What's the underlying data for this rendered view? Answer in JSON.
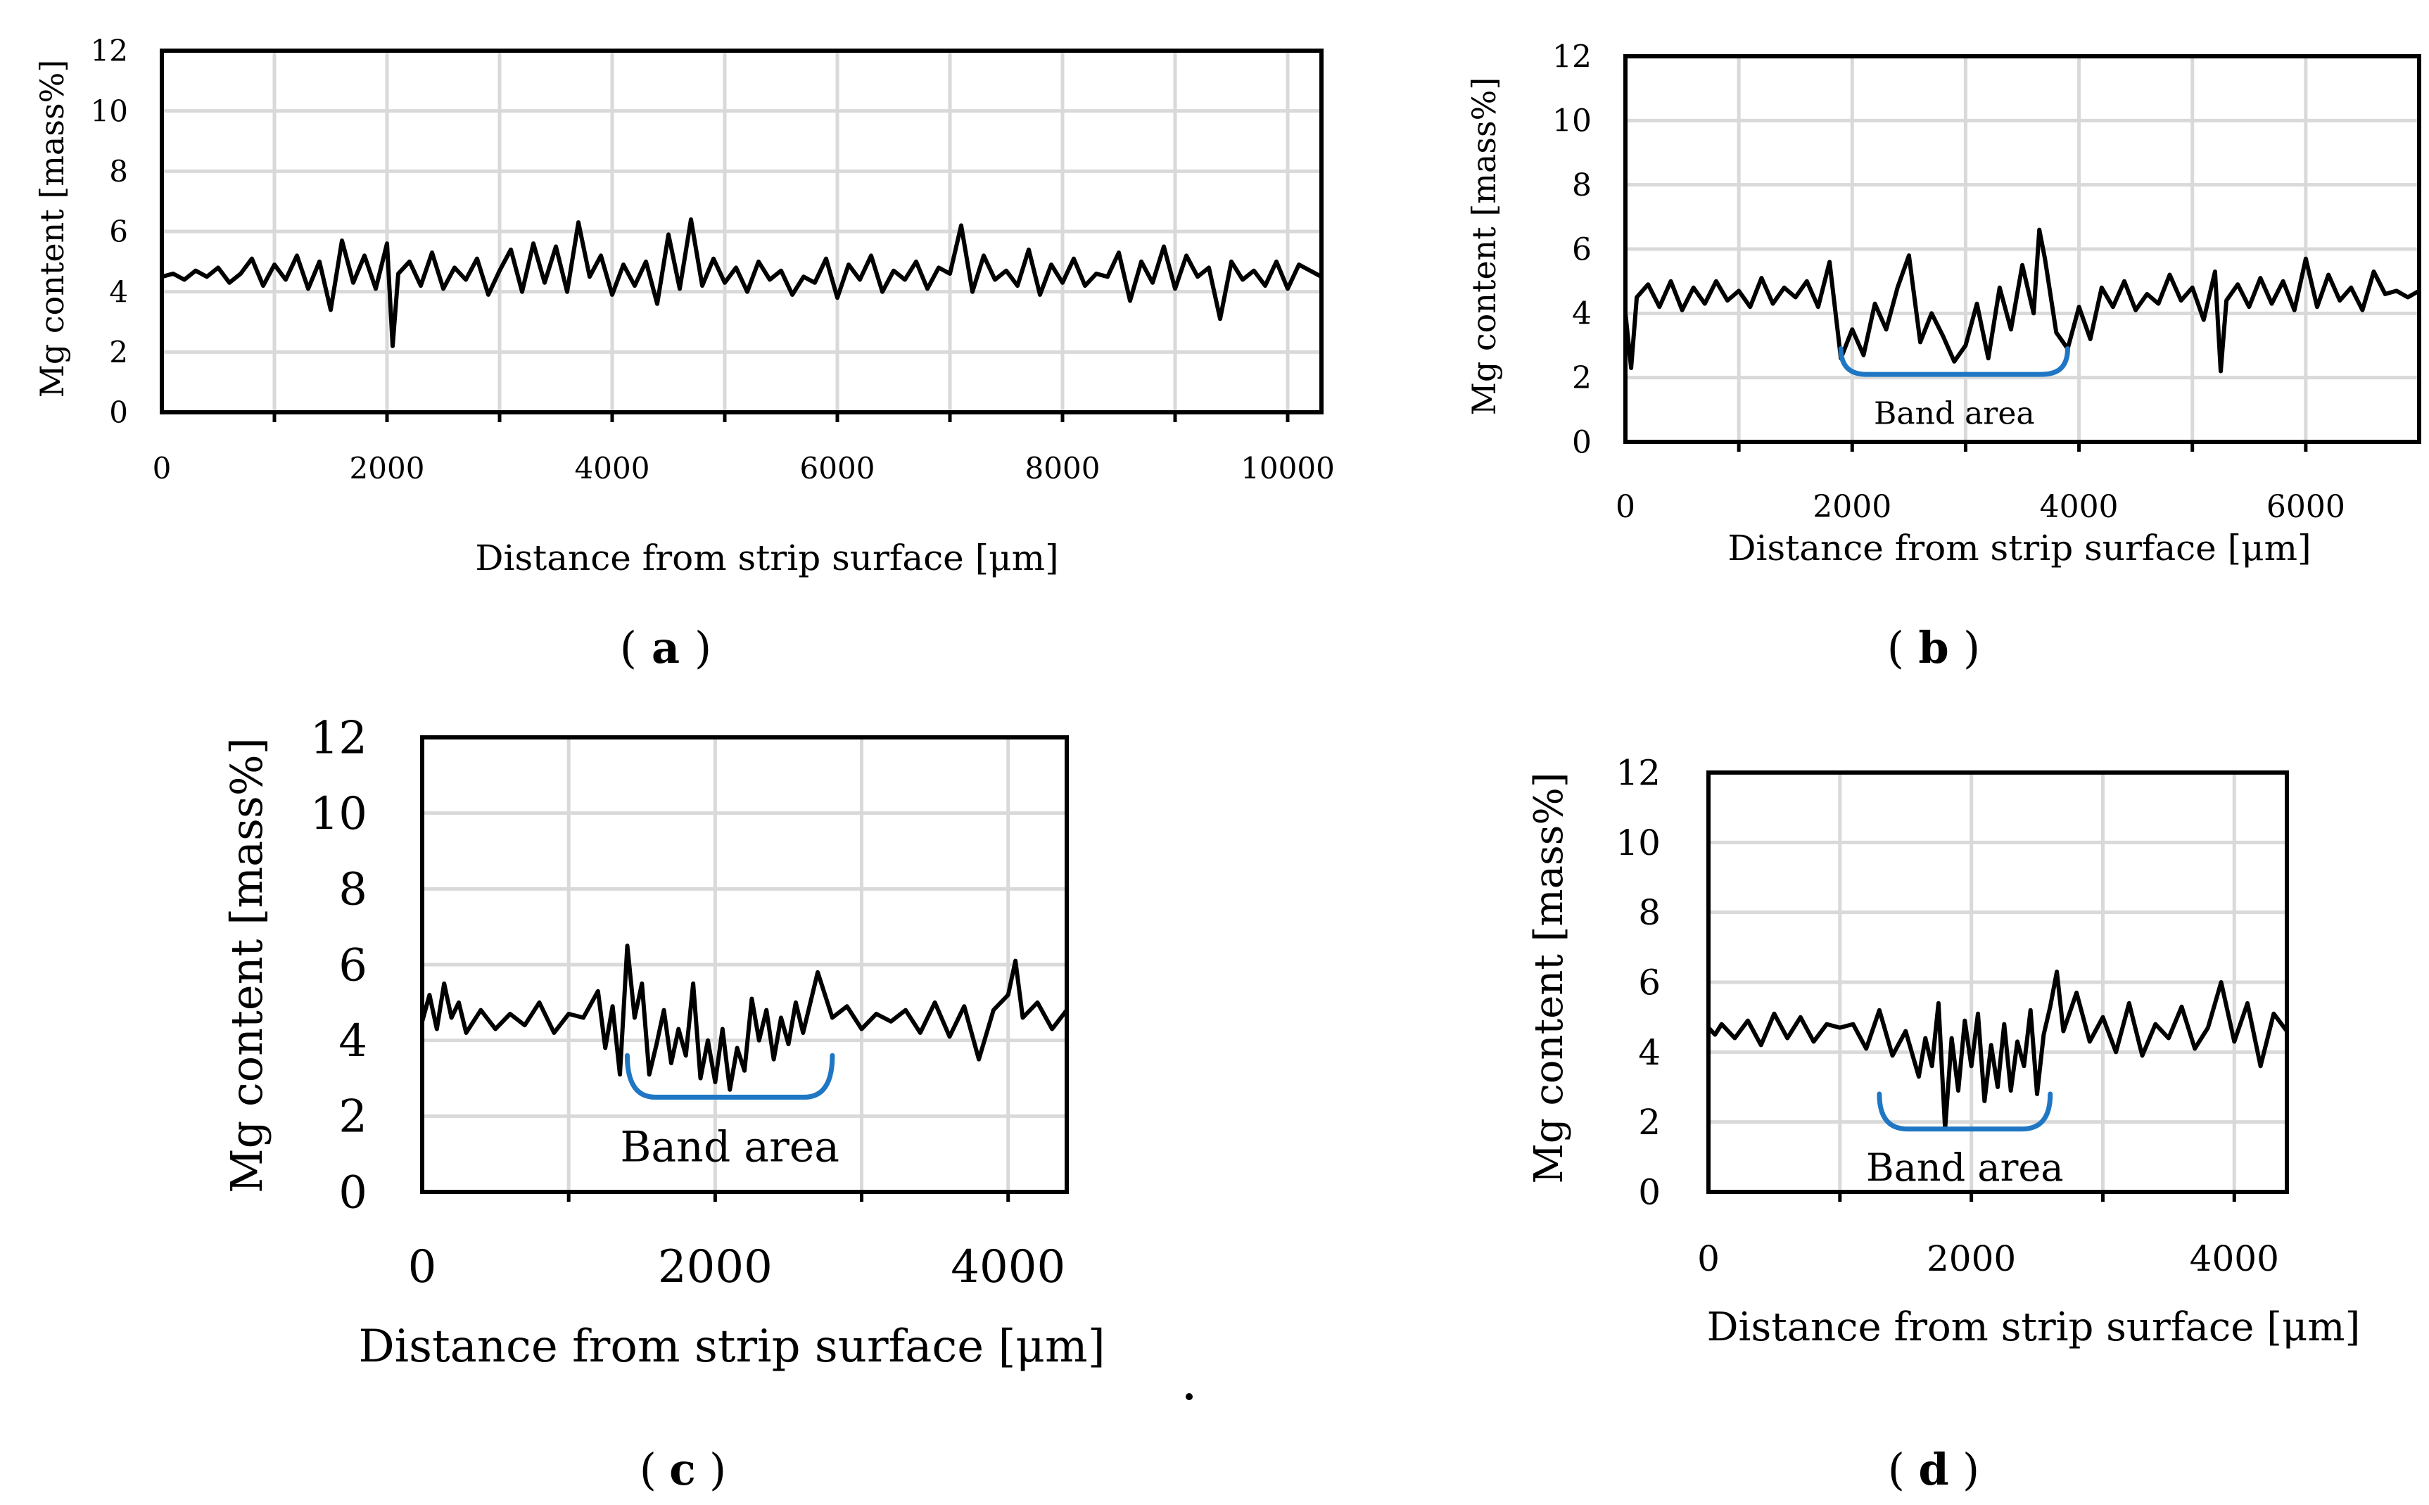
{
  "chart_data": [
    {
      "id": "a",
      "type": "line",
      "panel_label": "a",
      "xlabel": "Distance from strip surface  [μm]",
      "ylabel": "Mg content [mass%]",
      "xlim": [
        0,
        10300
      ],
      "ylim": [
        0,
        12
      ],
      "xticks": [
        0,
        2000,
        4000,
        6000,
        8000,
        10000
      ],
      "yticks": [
        0,
        2,
        4,
        6,
        8,
        10,
        12
      ],
      "xgrid_step": 1000,
      "series": [
        {
          "name": "Mg content",
          "x": [
            0,
            100,
            200,
            300,
            400,
            500,
            600,
            700,
            800,
            900,
            1000,
            1100,
            1200,
            1300,
            1400,
            1500,
            1600,
            1700,
            1800,
            1900,
            2000,
            2050,
            2100,
            2200,
            2300,
            2400,
            2500,
            2600,
            2700,
            2800,
            2900,
            3000,
            3100,
            3200,
            3300,
            3400,
            3500,
            3600,
            3700,
            3800,
            3900,
            4000,
            4100,
            4200,
            4300,
            4400,
            4500,
            4600,
            4700,
            4800,
            4900,
            5000,
            5100,
            5200,
            5300,
            5400,
            5500,
            5600,
            5700,
            5800,
            5900,
            6000,
            6100,
            6200,
            6300,
            6400,
            6500,
            6600,
            6700,
            6800,
            6900,
            7000,
            7100,
            7200,
            7300,
            7400,
            7500,
            7600,
            7700,
            7800,
            7900,
            8000,
            8100,
            8200,
            8300,
            8400,
            8500,
            8600,
            8700,
            8800,
            8900,
            9000,
            9100,
            9200,
            9300,
            9400,
            9500,
            9600,
            9700,
            9800,
            9900,
            10000,
            10100,
            10200,
            10300
          ],
          "y": [
            4.5,
            4.6,
            4.4,
            4.7,
            4.5,
            4.8,
            4.3,
            4.6,
            5.1,
            4.2,
            4.9,
            4.4,
            5.2,
            4.1,
            5.0,
            3.4,
            5.7,
            4.3,
            5.2,
            4.1,
            5.6,
            2.2,
            4.6,
            5.0,
            4.2,
            5.3,
            4.1,
            4.8,
            4.4,
            5.1,
            3.9,
            4.7,
            5.4,
            4.0,
            5.6,
            4.3,
            5.5,
            4.0,
            6.3,
            4.5,
            5.2,
            3.9,
            4.9,
            4.2,
            5.0,
            3.6,
            5.9,
            4.1,
            6.4,
            4.2,
            5.1,
            4.3,
            4.8,
            4.0,
            5.0,
            4.4,
            4.7,
            3.9,
            4.5,
            4.3,
            5.1,
            3.8,
            4.9,
            4.4,
            5.2,
            4.0,
            4.7,
            4.4,
            5.0,
            4.1,
            4.8,
            4.6,
            6.2,
            4.0,
            5.2,
            4.4,
            4.7,
            4.2,
            5.4,
            3.9,
            4.9,
            4.3,
            5.1,
            4.2,
            4.6,
            4.5,
            5.3,
            3.7,
            5.0,
            4.3,
            5.5,
            4.1,
            5.2,
            4.5,
            4.8,
            3.1,
            5.0,
            4.4,
            4.7,
            4.2,
            5.0,
            4.1,
            4.9,
            4.7,
            4.5
          ]
        }
      ]
    },
    {
      "id": "b",
      "type": "line",
      "panel_label": "b",
      "xlabel": "Distance from strip surface [μm]",
      "ylabel": "Mg content [mass%]",
      "xlim": [
        0,
        7000
      ],
      "ylim": [
        0,
        12
      ],
      "xticks": [
        0,
        2000,
        4000,
        6000
      ],
      "yticks": [
        0,
        2,
        4,
        6,
        8,
        10,
        12
      ],
      "xgrid_step": 1000,
      "annotation": {
        "text": "Band area",
        "x_range": [
          1900,
          3900
        ],
        "y": 2.9,
        "y_bottom": 2.1,
        "label_y": 0.9
      },
      "series": [
        {
          "name": "Mg content",
          "x": [
            0,
            50,
            100,
            200,
            300,
            400,
            500,
            600,
            700,
            800,
            900,
            1000,
            1100,
            1200,
            1300,
            1400,
            1500,
            1600,
            1700,
            1800,
            1900,
            2000,
            2100,
            2200,
            2300,
            2400,
            2500,
            2600,
            2700,
            2800,
            2900,
            3000,
            3100,
            3200,
            3300,
            3400,
            3500,
            3600,
            3650,
            3700,
            3800,
            3900,
            4000,
            4100,
            4200,
            4300,
            4400,
            4500,
            4600,
            4700,
            4800,
            4900,
            5000,
            5100,
            5200,
            5250,
            5300,
            5400,
            5500,
            5600,
            5700,
            5800,
            5900,
            6000,
            6100,
            6200,
            6300,
            6400,
            6500,
            6600,
            6700,
            6800,
            6900,
            7000
          ],
          "y": [
            4.0,
            2.3,
            4.5,
            4.9,
            4.2,
            5.0,
            4.1,
            4.8,
            4.3,
            5.0,
            4.4,
            4.7,
            4.2,
            5.1,
            4.3,
            4.8,
            4.5,
            5.0,
            4.2,
            5.6,
            2.6,
            3.5,
            2.7,
            4.3,
            3.5,
            4.8,
            5.8,
            3.1,
            4.0,
            3.3,
            2.5,
            3.0,
            4.3,
            2.6,
            4.8,
            3.5,
            5.5,
            4.0,
            6.6,
            5.7,
            3.4,
            2.9,
            4.2,
            3.2,
            4.8,
            4.2,
            5.0,
            4.1,
            4.6,
            4.3,
            5.2,
            4.4,
            4.8,
            3.8,
            5.3,
            2.2,
            4.4,
            4.9,
            4.2,
            5.1,
            4.3,
            5.0,
            4.1,
            5.7,
            4.2,
            5.2,
            4.4,
            4.8,
            4.1,
            5.3,
            4.6,
            4.7,
            4.5,
            4.7
          ]
        }
      ]
    },
    {
      "id": "c",
      "type": "line",
      "panel_label": "c",
      "xlabel": "Distance from strip surface [μm]",
      "ylabel": "Mg content [mass%]",
      "xlim": [
        0,
        4400
      ],
      "ylim": [
        0,
        12
      ],
      "xticks": [
        0,
        2000,
        4000
      ],
      "yticks": [
        0,
        2,
        4,
        6,
        8,
        10,
        12
      ],
      "xgrid_step": 1000,
      "annotation": {
        "text": "Band area",
        "x_range": [
          1400,
          2800
        ],
        "y": 3.6,
        "y_bottom": 2.5,
        "label_y": 1.2
      },
      "series": [
        {
          "name": "Mg content",
          "x": [
            0,
            50,
            100,
            150,
            200,
            250,
            300,
            400,
            500,
            600,
            700,
            800,
            900,
            1000,
            1100,
            1200,
            1250,
            1300,
            1350,
            1400,
            1450,
            1500,
            1550,
            1600,
            1650,
            1700,
            1750,
            1800,
            1850,
            1900,
            1950,
            2000,
            2050,
            2100,
            2150,
            2200,
            2250,
            2300,
            2350,
            2400,
            2450,
            2500,
            2550,
            2600,
            2700,
            2800,
            2900,
            3000,
            3100,
            3200,
            3300,
            3400,
            3500,
            3600,
            3700,
            3800,
            3900,
            4000,
            4050,
            4100,
            4200,
            4300,
            4400
          ],
          "y": [
            4.5,
            5.2,
            4.3,
            5.5,
            4.6,
            5.0,
            4.2,
            4.8,
            4.3,
            4.7,
            4.4,
            5.0,
            4.2,
            4.7,
            4.6,
            5.3,
            3.8,
            4.9,
            3.1,
            6.5,
            4.6,
            5.5,
            3.1,
            3.9,
            4.8,
            3.4,
            4.3,
            3.6,
            5.5,
            3.0,
            4.0,
            2.9,
            4.3,
            2.7,
            3.8,
            3.2,
            5.1,
            4.0,
            4.8,
            3.5,
            4.6,
            3.9,
            5.0,
            4.2,
            5.8,
            4.6,
            4.9,
            4.3,
            4.7,
            4.5,
            4.8,
            4.2,
            5.0,
            4.1,
            4.9,
            3.5,
            4.8,
            5.2,
            6.1,
            4.6,
            5.0,
            4.3,
            4.8
          ]
        }
      ]
    },
    {
      "id": "d",
      "type": "line",
      "panel_label": "d",
      "xlabel": "Distance from strip surface [μm]",
      "ylabel": "Mg content [mass%]",
      "xlim": [
        0,
        4400
      ],
      "ylim": [
        0,
        12
      ],
      "xticks": [
        0,
        2000,
        4000
      ],
      "yticks": [
        0,
        2,
        4,
        6,
        8,
        10,
        12
      ],
      "xgrid_step": 1000,
      "annotation": {
        "text": "Band area",
        "x_range": [
          1300,
          2600
        ],
        "y": 2.8,
        "y_bottom": 1.8,
        "label_y": 0.7
      },
      "series": [
        {
          "name": "Mg content",
          "x": [
            0,
            50,
            100,
            200,
            300,
            400,
            500,
            600,
            700,
            800,
            900,
            1000,
            1100,
            1200,
            1300,
            1400,
            1500,
            1600,
            1650,
            1700,
            1750,
            1800,
            1850,
            1900,
            1950,
            2000,
            2050,
            2100,
            2150,
            2200,
            2250,
            2300,
            2350,
            2400,
            2450,
            2500,
            2550,
            2600,
            2650,
            2700,
            2800,
            2900,
            3000,
            3100,
            3200,
            3300,
            3400,
            3500,
            3600,
            3700,
            3800,
            3900,
            4000,
            4100,
            4200,
            4300,
            4400
          ],
          "y": [
            4.7,
            4.5,
            4.8,
            4.4,
            4.9,
            4.2,
            5.1,
            4.4,
            5.0,
            4.3,
            4.8,
            4.7,
            4.8,
            4.1,
            5.2,
            3.9,
            4.6,
            3.3,
            4.4,
            3.6,
            5.4,
            1.8,
            4.4,
            2.9,
            4.9,
            3.6,
            5.1,
            2.6,
            4.2,
            3.0,
            4.8,
            2.9,
            4.3,
            3.6,
            5.2,
            2.8,
            4.5,
            5.3,
            6.3,
            4.6,
            5.7,
            4.3,
            5.0,
            4.0,
            5.4,
            3.9,
            4.8,
            4.4,
            5.3,
            4.1,
            4.7,
            6.0,
            4.3,
            5.4,
            3.6,
            5.1,
            4.6
          ]
        }
      ]
    }
  ]
}
